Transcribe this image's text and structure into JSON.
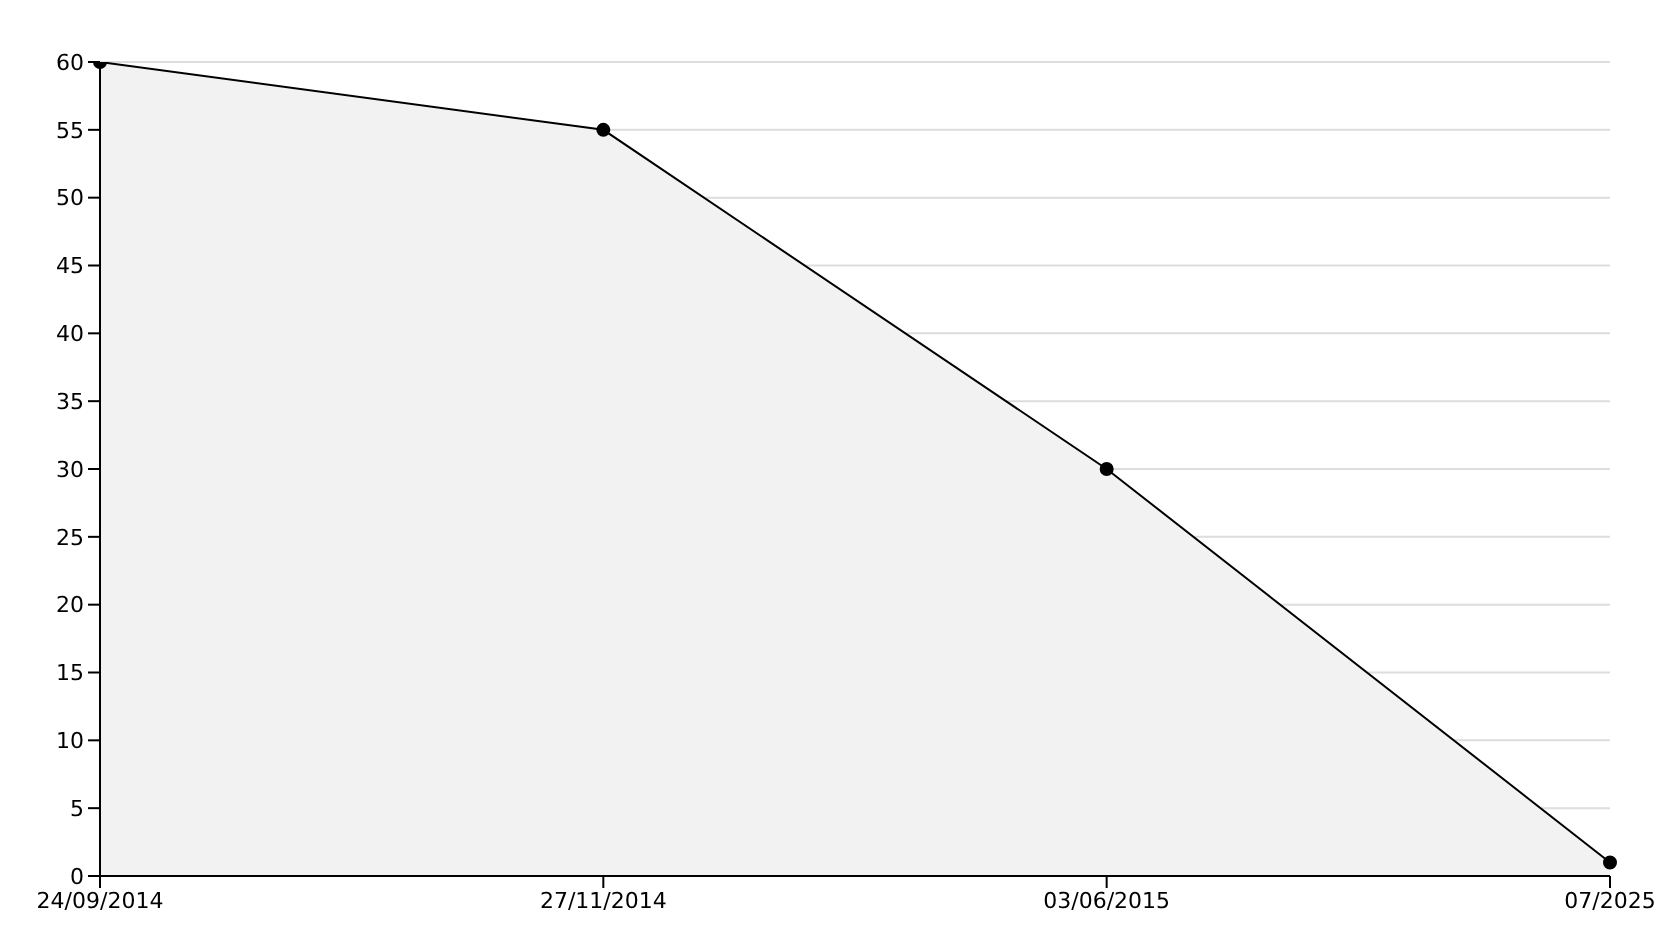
{
  "chart_data": {
    "type": "area",
    "categories": [
      "24/09/2014",
      "27/11/2014",
      "03/06/2015",
      "07/2025"
    ],
    "series": [
      {
        "color": "#000000",
        "values": [
          60,
          55,
          30,
          1
        ]
      }
    ],
    "ylim": [
      0,
      60
    ],
    "yticks": [
      0,
      5,
      10,
      15,
      20,
      25,
      30,
      35,
      40,
      45,
      50,
      55,
      60
    ],
    "grid": "y",
    "marker": "circle",
    "legend": false
  }
}
